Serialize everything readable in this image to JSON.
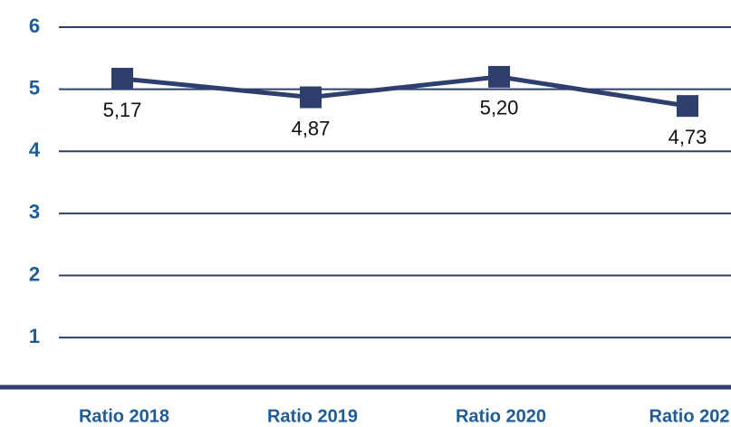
{
  "chart_data": {
    "type": "line",
    "categories": [
      "Ratio 2018",
      "Ratio 2019",
      "Ratio 2020",
      "Ratio 202"
    ],
    "series": [
      {
        "color": "#2e3f6e",
        "values": [
          5.17,
          4.87,
          5.2,
          4.73
        ],
        "value_labels": [
          "5,17",
          "4,87",
          "5,20",
          "4,73"
        ]
      }
    ],
    "ylim": [
      0.2,
      6
    ],
    "yticks": [
      1,
      2,
      3,
      4,
      5,
      6
    ],
    "grid": true
  }
}
